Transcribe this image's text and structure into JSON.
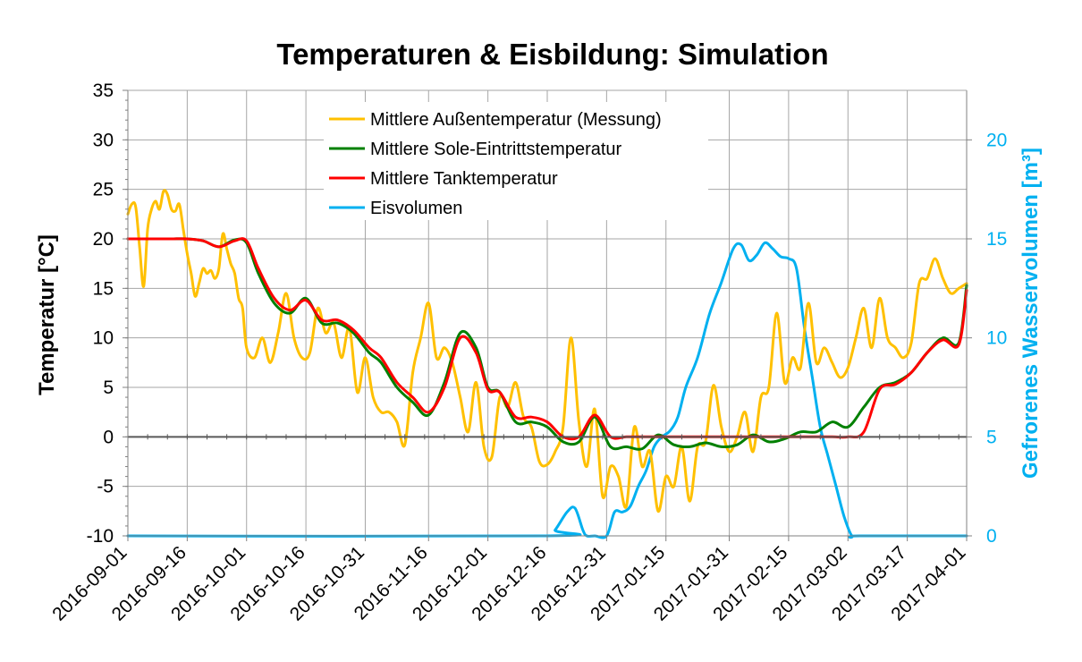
{
  "colors": {
    "outdoor": "#FFC000",
    "brine": "#008000",
    "tank": "#FF0000",
    "ice": "#00B0F0",
    "grid": "#A6A6A6",
    "axis_right": "#00B0F0"
  },
  "chart_data": {
    "type": "line",
    "title": "Temperaturen & Eisbildung: Simulation",
    "ylabel": "Temperatur [°C]",
    "y2label": "Gefrorenes Wasservolumen [m³]",
    "xlim": [
      "2016-09-01",
      "2017-04-01"
    ],
    "ylim": [
      -10,
      35
    ],
    "y2lim": [
      0,
      22.5
    ],
    "x_tick_labels": [
      "2016-09-01",
      "2016-09-16",
      "2016-10-01",
      "2016-10-16",
      "2016-10-31",
      "2016-11-16",
      "2016-12-01",
      "2016-12-16",
      "2016-12-31",
      "2017-01-15",
      "2017-01-31",
      "2017-02-15",
      "2017-03-02",
      "2017-03-17",
      "2017-04-01"
    ],
    "y_tick_labels": [
      "35",
      "30",
      "25",
      "20",
      "15",
      "10",
      "5",
      "0",
      "-5",
      "-10"
    ],
    "y2_tick_labels": [
      "20",
      "15",
      "10",
      "5",
      "0"
    ],
    "grid": true,
    "legend_position": "top-center",
    "series": [
      {
        "name": "Mittlere Außentemperatur (Messung)",
        "color": "#FFC000",
        "x": [
          "2016-09-01",
          "2016-09-02",
          "2016-09-03",
          "2016-09-04",
          "2016-09-05",
          "2016-09-06",
          "2016-09-07",
          "2016-09-08",
          "2016-09-09",
          "2016-09-10",
          "2016-09-11",
          "2016-09-12",
          "2016-09-13",
          "2016-09-14",
          "2016-09-15",
          "2016-09-16",
          "2016-09-17",
          "2016-09-18",
          "2016-09-19",
          "2016-09-20",
          "2016-09-21",
          "2016-09-22",
          "2016-09-23",
          "2016-09-24",
          "2016-09-25",
          "2016-09-26",
          "2016-09-27",
          "2016-09-28",
          "2016-09-29",
          "2016-09-30",
          "2016-10-01",
          "2016-10-03",
          "2016-10-05",
          "2016-10-07",
          "2016-10-09",
          "2016-10-11",
          "2016-10-13",
          "2016-10-15",
          "2016-10-17",
          "2016-10-19",
          "2016-10-21",
          "2016-10-23",
          "2016-10-25",
          "2016-10-27",
          "2016-10-29",
          "2016-10-31",
          "2016-11-02",
          "2016-11-04",
          "2016-11-06",
          "2016-11-08",
          "2016-11-10",
          "2016-11-12",
          "2016-11-14",
          "2016-11-16",
          "2016-11-18",
          "2016-11-20",
          "2016-11-22",
          "2016-11-24",
          "2016-11-26",
          "2016-11-28",
          "2016-11-30",
          "2016-12-02",
          "2016-12-04",
          "2016-12-06",
          "2016-12-08",
          "2016-12-10",
          "2016-12-12",
          "2016-12-14",
          "2016-12-16",
          "2016-12-18",
          "2016-12-20",
          "2016-12-22",
          "2016-12-24",
          "2016-12-26",
          "2016-12-28",
          "2016-12-30",
          "2017-01-01",
          "2017-01-03",
          "2017-01-05",
          "2017-01-07",
          "2017-01-09",
          "2017-01-11",
          "2017-01-13",
          "2017-01-15",
          "2017-01-17",
          "2017-01-19",
          "2017-01-21",
          "2017-01-23",
          "2017-01-25",
          "2017-01-27",
          "2017-01-29",
          "2017-01-31",
          "2017-02-02",
          "2017-02-04",
          "2017-02-06",
          "2017-02-08",
          "2017-02-10",
          "2017-02-12",
          "2017-02-14",
          "2017-02-16",
          "2017-02-18",
          "2017-02-20",
          "2017-02-22",
          "2017-02-24",
          "2017-02-26",
          "2017-02-28",
          "2017-03-02",
          "2017-03-04",
          "2017-03-06",
          "2017-03-08",
          "2017-03-10",
          "2017-03-12",
          "2017-03-14",
          "2017-03-16",
          "2017-03-18",
          "2017-03-20",
          "2017-03-22",
          "2017-03-24",
          "2017-03-26",
          "2017-03-28",
          "2017-03-30",
          "2017-04-01"
        ],
        "y": [
          22.5,
          23.5,
          23.2,
          19.0,
          15.2,
          21.0,
          23.0,
          23.8,
          23.0,
          24.8,
          24.5,
          23.0,
          22.8,
          23.5,
          21.0,
          18.5,
          16.5,
          14.2,
          15.5,
          17.0,
          16.5,
          16.8,
          16.0,
          17.0,
          20.5,
          19.0,
          17.5,
          16.5,
          14.0,
          13.0,
          9.0,
          8.0,
          10.0,
          7.5,
          10.5,
          14.5,
          10.0,
          8.0,
          8.5,
          13.0,
          10.5,
          11.5,
          8.0,
          11.0,
          4.5,
          8.0,
          4.0,
          2.5,
          2.5,
          1.5,
          -0.8,
          6.5,
          10.0,
          13.5,
          8.0,
          9.0,
          7.5,
          4.0,
          0.5,
          5.5,
          -1.0,
          -2.0,
          4.0,
          3.0,
          5.5,
          2.0,
          1.0,
          -2.5,
          -2.8,
          -1.5,
          1.0,
          10.0,
          1.5,
          -3.0,
          2.8,
          -6.0,
          -3.0,
          -4.0,
          -7.0,
          1.0,
          -3.0,
          -1.5,
          -7.5,
          -4.0,
          -5.0,
          -1.0,
          -6.5,
          -1.0,
          -0.5,
          5.2,
          1.0,
          -1.5,
          0.0,
          2.5,
          -1.5,
          4.0,
          5.0,
          12.5,
          5.5,
          8.0,
          7.0,
          13.5,
          7.5,
          9.0,
          7.5,
          6.0,
          7.0,
          10.0,
          13.0,
          9.0,
          14.0,
          10.0,
          9.0,
          8.0,
          9.5,
          15.5,
          16.0,
          18.0,
          16.0,
          14.5,
          15.0,
          15.5
        ]
      },
      {
        "name": "Mittlere Sole-Eintrittstemperatur",
        "color": "#008000",
        "x": [
          "2016-09-01",
          "2016-09-05",
          "2016-09-08",
          "2016-09-12",
          "2016-09-16",
          "2016-09-20",
          "2016-09-24",
          "2016-09-28",
          "2016-10-01",
          "2016-10-04",
          "2016-10-08",
          "2016-10-12",
          "2016-10-16",
          "2016-10-20",
          "2016-10-24",
          "2016-10-28",
          "2016-11-01",
          "2016-11-04",
          "2016-11-08",
          "2016-11-12",
          "2016-11-16",
          "2016-11-20",
          "2016-11-24",
          "2016-11-28",
          "2016-12-01",
          "2016-12-04",
          "2016-12-08",
          "2016-12-12",
          "2016-12-16",
          "2016-12-20",
          "2016-12-24",
          "2016-12-28",
          "2017-01-01",
          "2017-01-05",
          "2017-01-09",
          "2017-01-13",
          "2017-01-17",
          "2017-01-21",
          "2017-01-25",
          "2017-01-29",
          "2017-02-02",
          "2017-02-06",
          "2017-02-10",
          "2017-02-14",
          "2017-02-18",
          "2017-02-22",
          "2017-02-26",
          "2017-03-02",
          "2017-03-06",
          "2017-03-10",
          "2017-03-14",
          "2017-03-18",
          "2017-03-22",
          "2017-03-26",
          "2017-03-30",
          "2017-04-01"
        ],
        "y": [
          20.0,
          20.0,
          20.0,
          20.0,
          20.0,
          19.8,
          19.2,
          19.9,
          19.6,
          16.5,
          13.5,
          12.5,
          14.0,
          11.5,
          11.5,
          10.5,
          8.5,
          7.5,
          5.0,
          3.5,
          2.2,
          5.5,
          10.5,
          9.0,
          5.0,
          4.5,
          1.5,
          1.5,
          1.0,
          -0.5,
          -0.5,
          2.0,
          -1.0,
          -1.0,
          -1.2,
          0.2,
          -0.8,
          -1.0,
          -0.6,
          -1.0,
          -0.8,
          0.2,
          -0.5,
          -0.2,
          0.5,
          0.5,
          1.5,
          1.0,
          3.0,
          5.0,
          5.5,
          6.5,
          8.5,
          10.0,
          9.5,
          15.3
        ]
      },
      {
        "name": "Mittlere Tanktemperatur",
        "color": "#FF0000",
        "x": [
          "2016-09-01",
          "2016-09-05",
          "2016-09-08",
          "2016-09-12",
          "2016-09-16",
          "2016-09-20",
          "2016-09-24",
          "2016-09-28",
          "2016-10-01",
          "2016-10-04",
          "2016-10-08",
          "2016-10-12",
          "2016-10-16",
          "2016-10-20",
          "2016-10-24",
          "2016-10-28",
          "2016-11-01",
          "2016-11-04",
          "2016-11-08",
          "2016-11-12",
          "2016-11-16",
          "2016-11-20",
          "2016-11-24",
          "2016-11-28",
          "2016-12-01",
          "2016-12-04",
          "2016-12-08",
          "2016-12-12",
          "2016-12-16",
          "2016-12-20",
          "2016-12-24",
          "2016-12-28",
          "2017-01-01",
          "2017-01-05",
          "2017-01-09",
          "2017-01-13",
          "2017-01-17",
          "2017-01-21",
          "2017-01-25",
          "2017-01-29",
          "2017-02-02",
          "2017-02-06",
          "2017-02-10",
          "2017-02-14",
          "2017-02-18",
          "2017-02-22",
          "2017-02-26",
          "2017-03-02",
          "2017-03-06",
          "2017-03-10",
          "2017-03-14",
          "2017-03-18",
          "2017-03-22",
          "2017-03-26",
          "2017-03-30",
          "2017-04-01"
        ],
        "y": [
          20.0,
          20.0,
          20.0,
          20.0,
          20.0,
          19.8,
          19.2,
          19.8,
          19.8,
          17.0,
          14.0,
          12.8,
          13.8,
          11.8,
          11.8,
          10.8,
          9.0,
          8.0,
          5.5,
          4.0,
          2.5,
          5.0,
          10.0,
          8.5,
          4.8,
          4.5,
          2.0,
          2.0,
          1.5,
          0.0,
          0.0,
          2.2,
          0.0,
          0.0,
          0.0,
          0.0,
          0.0,
          0.0,
          0.0,
          0.0,
          0.0,
          0.0,
          0.0,
          0.0,
          0.0,
          0.0,
          0.0,
          0.0,
          0.5,
          4.8,
          5.3,
          6.5,
          8.5,
          9.8,
          9.3,
          14.8
        ]
      },
      {
        "name": "Eisvolumen",
        "color": "#00B0F0",
        "axis": "right",
        "x": [
          "2016-09-01",
          "2016-12-16",
          "2016-12-18",
          "2016-12-21",
          "2016-12-23",
          "2016-12-25",
          "2016-12-26",
          "2016-12-28",
          "2016-12-31",
          "2017-01-02",
          "2017-01-04",
          "2017-01-06",
          "2017-01-08",
          "2017-01-10",
          "2017-01-12",
          "2017-01-14",
          "2017-01-16",
          "2017-01-18",
          "2017-01-20",
          "2017-01-23",
          "2017-01-26",
          "2017-01-29",
          "2017-02-01",
          "2017-02-03",
          "2017-02-05",
          "2017-02-07",
          "2017-02-09",
          "2017-02-11",
          "2017-02-13",
          "2017-02-15",
          "2017-02-17",
          "2017-02-19",
          "2017-02-21",
          "2017-02-23",
          "2017-02-25",
          "2017-02-27",
          "2017-03-01",
          "2017-03-03",
          "2017-03-05",
          "2017-04-01"
        ],
        "y": [
          0.0,
          0.0,
          0.3,
          1.2,
          1.4,
          0.3,
          0.0,
          0.0,
          0.0,
          1.2,
          1.2,
          1.5,
          2.5,
          3.3,
          4.5,
          5.0,
          5.3,
          6.0,
          7.5,
          9.0,
          11.2,
          12.8,
          14.5,
          14.7,
          13.9,
          14.2,
          14.8,
          14.5,
          14.1,
          14.0,
          13.5,
          10.5,
          8.0,
          5.5,
          4.0,
          2.5,
          1.0,
          0.0,
          0.0,
          0.0
        ]
      }
    ]
  }
}
